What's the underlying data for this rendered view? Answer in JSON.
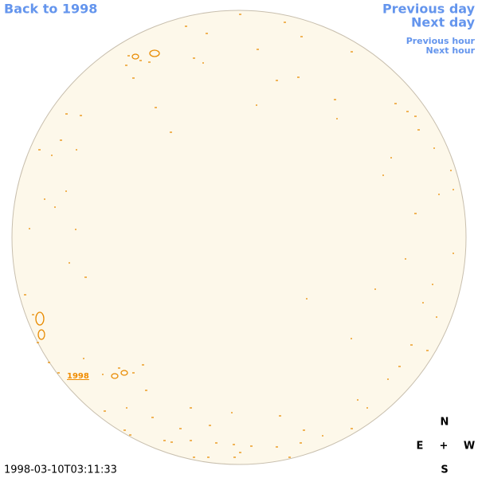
{
  "nav": {
    "back": "Back to 1998",
    "previous_day": "Previous day",
    "next_day": "Next day",
    "previous_hour": "Previous hour",
    "next_hour": "Next hour"
  },
  "disk_label": "1998",
  "compass": {
    "n": "N",
    "e": "E",
    "center": "+",
    "w": "W",
    "s": "S"
  },
  "timestamp": "1998-03-10T03:11:33"
}
